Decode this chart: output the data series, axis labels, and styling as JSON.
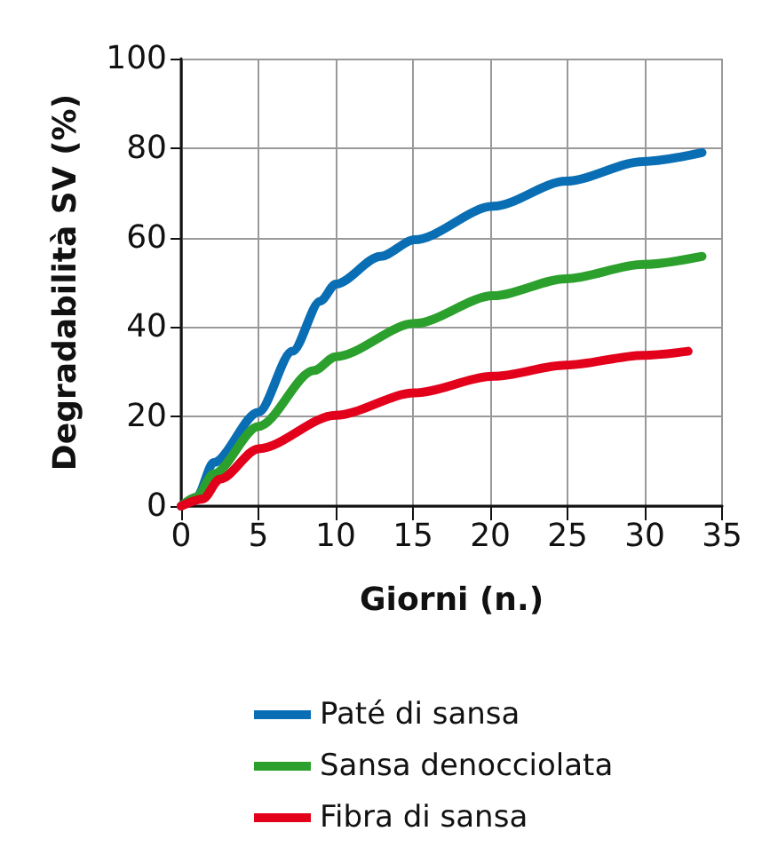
{
  "chart_data": {
    "type": "line",
    "xlabel": "Giorni (n.)",
    "ylabel": "Degradabilità SV (%)",
    "xlim": [
      0,
      35
    ],
    "ylim": [
      0,
      100
    ],
    "xticks": [
      0,
      5,
      10,
      15,
      20,
      25,
      30,
      35
    ],
    "yticks": [
      0,
      20,
      40,
      60,
      80,
      100
    ],
    "grid": true,
    "legend": "bottom",
    "marker": "none",
    "line_style": "solid",
    "series": [
      {
        "name": "Paté di sansa",
        "color": "#0a6eb4",
        "x": [
          0,
          1,
          2.1,
          5,
          7.2,
          9,
          10,
          12.9,
          15.1,
          20.2,
          24.9,
          29.9,
          33.7
        ],
        "values": [
          0,
          2,
          9.7,
          21,
          34.6,
          45.8,
          49.6,
          55.8,
          59.5,
          67,
          72.6,
          77,
          79
        ]
      },
      {
        "name": "Sansa denocciolata",
        "color": "#2ca02c",
        "x": [
          0,
          1,
          2.1,
          5,
          8.6,
          10,
          15.1,
          20.2,
          24.9,
          29.9,
          33.7
        ],
        "values": [
          0,
          2,
          7.2,
          17.8,
          30.3,
          33.4,
          40.8,
          47,
          50.8,
          54,
          55.8
        ]
      },
      {
        "name": "Fibra di sansa",
        "color": "#e2001a",
        "x": [
          0,
          1.4,
          2.5,
          5,
          10,
          15.1,
          20.2,
          24.9,
          29.9,
          32.8
        ],
        "values": [
          0,
          1.6,
          6,
          12.8,
          20.3,
          25.3,
          29,
          31.5,
          33.7,
          34.6
        ]
      }
    ]
  }
}
